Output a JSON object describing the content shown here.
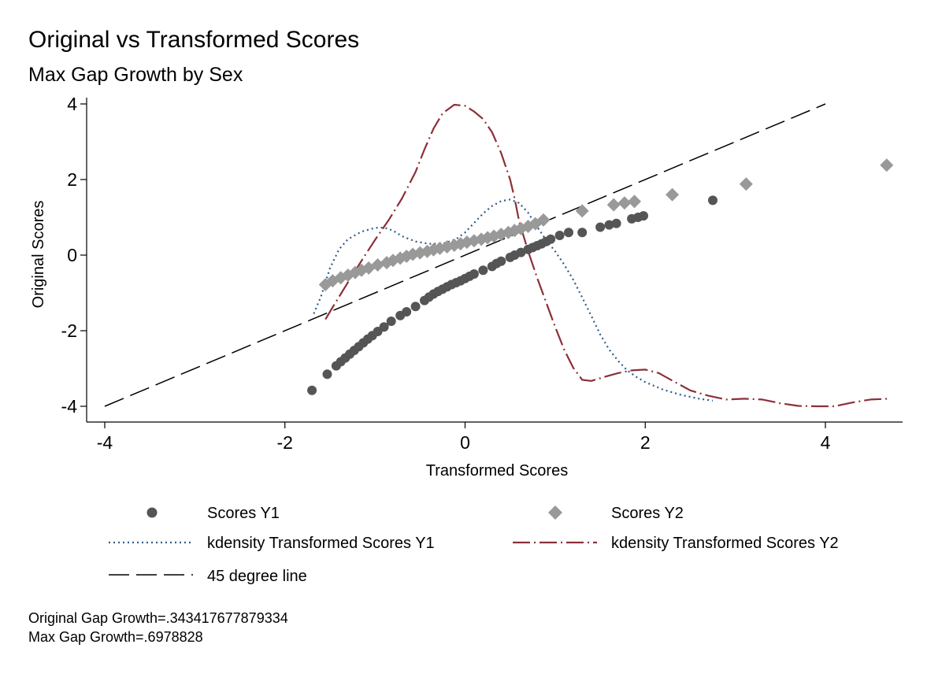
{
  "chart_data": {
    "type": "scatter",
    "title": "Original vs Transformed Scores",
    "subtitle": "Max Gap Growth by Sex",
    "xlabel": "Transformed Scores",
    "ylabel": "Original Scores",
    "xlim": [
      -4.0,
      4.7
    ],
    "ylim": [
      -4.2,
      4.2
    ],
    "xticks": [
      -4,
      -2,
      0,
      2,
      4
    ],
    "yticks": [
      -4,
      -2,
      0,
      2,
      4
    ],
    "xtick_labels": [
      "-4",
      "-2",
      "0",
      "2",
      "4"
    ],
    "ytick_labels": [
      "-4",
      "-2",
      "0",
      "2",
      "4"
    ],
    "grid": false,
    "legend_position": "bottom",
    "series": [
      {
        "name": "Scores Y1",
        "kind": "scatter",
        "marker": "circle",
        "color": "#555555",
        "points": [
          [
            -1.7,
            -3.58
          ],
          [
            -1.53,
            -3.15
          ],
          [
            -1.43,
            -2.93
          ],
          [
            -1.38,
            -2.82
          ],
          [
            -1.33,
            -2.72
          ],
          [
            -1.28,
            -2.62
          ],
          [
            -1.23,
            -2.52
          ],
          [
            -1.18,
            -2.42
          ],
          [
            -1.13,
            -2.32
          ],
          [
            -1.08,
            -2.22
          ],
          [
            -1.03,
            -2.13
          ],
          [
            -0.97,
            -2.02
          ],
          [
            -0.9,
            -1.9
          ],
          [
            -0.82,
            -1.75
          ],
          [
            -0.72,
            -1.6
          ],
          [
            -0.65,
            -1.5
          ],
          [
            -0.55,
            -1.36
          ],
          [
            -0.45,
            -1.2
          ],
          [
            -0.4,
            -1.11
          ],
          [
            -0.35,
            -1.03
          ],
          [
            -0.3,
            -0.96
          ],
          [
            -0.25,
            -0.9
          ],
          [
            -0.2,
            -0.84
          ],
          [
            -0.15,
            -0.78
          ],
          [
            -0.1,
            -0.73
          ],
          [
            -0.05,
            -0.68
          ],
          [
            0.0,
            -0.62
          ],
          [
            0.05,
            -0.56
          ],
          [
            0.1,
            -0.5
          ],
          [
            0.2,
            -0.4
          ],
          [
            0.3,
            -0.3
          ],
          [
            0.35,
            -0.22
          ],
          [
            0.4,
            -0.16
          ],
          [
            0.5,
            -0.06
          ],
          [
            0.55,
            0.0
          ],
          [
            0.62,
            0.07
          ],
          [
            0.7,
            0.15
          ],
          [
            0.75,
            0.2
          ],
          [
            0.8,
            0.25
          ],
          [
            0.85,
            0.3
          ],
          [
            0.9,
            0.36
          ],
          [
            0.95,
            0.42
          ],
          [
            1.05,
            0.52
          ],
          [
            1.15,
            0.6
          ],
          [
            1.3,
            0.6
          ],
          [
            1.5,
            0.74
          ],
          [
            1.6,
            0.8
          ],
          [
            1.68,
            0.84
          ],
          [
            1.85,
            0.96
          ],
          [
            1.92,
            1.0
          ],
          [
            1.98,
            1.04
          ],
          [
            2.75,
            1.45
          ]
        ]
      },
      {
        "name": "Scores Y2",
        "kind": "scatter",
        "marker": "diamond",
        "color": "#999999",
        "points": [
          [
            -1.55,
            -0.78
          ],
          [
            -1.47,
            -0.68
          ],
          [
            -1.38,
            -0.6
          ],
          [
            -1.3,
            -0.53
          ],
          [
            -1.22,
            -0.46
          ],
          [
            -1.15,
            -0.4
          ],
          [
            -1.07,
            -0.34
          ],
          [
            -0.97,
            -0.26
          ],
          [
            -0.87,
            -0.2
          ],
          [
            -0.8,
            -0.14
          ],
          [
            -0.72,
            -0.08
          ],
          [
            -0.65,
            -0.03
          ],
          [
            -0.58,
            0.02
          ],
          [
            -0.5,
            0.06
          ],
          [
            -0.42,
            0.1
          ],
          [
            -0.35,
            0.14
          ],
          [
            -0.28,
            0.18
          ],
          [
            -0.2,
            0.22
          ],
          [
            -0.12,
            0.26
          ],
          [
            -0.05,
            0.3
          ],
          [
            0.02,
            0.34
          ],
          [
            0.1,
            0.38
          ],
          [
            0.18,
            0.42
          ],
          [
            0.25,
            0.46
          ],
          [
            0.32,
            0.5
          ],
          [
            0.4,
            0.55
          ],
          [
            0.48,
            0.6
          ],
          [
            0.55,
            0.65
          ],
          [
            0.62,
            0.7
          ],
          [
            0.7,
            0.76
          ],
          [
            0.78,
            0.83
          ],
          [
            0.87,
            0.93
          ],
          [
            1.3,
            1.17
          ],
          [
            1.65,
            1.33
          ],
          [
            1.77,
            1.38
          ],
          [
            1.88,
            1.42
          ],
          [
            2.3,
            1.6
          ],
          [
            3.12,
            1.88
          ],
          [
            4.68,
            2.38
          ]
        ]
      },
      {
        "name": "kdensity Transformed Scores Y1",
        "kind": "line",
        "dash": "dot",
        "color": "#2e5c8a",
        "points": [
          [
            -1.68,
            -1.55
          ],
          [
            -1.6,
            -1.1
          ],
          [
            -1.5,
            -0.35
          ],
          [
            -1.4,
            0.15
          ],
          [
            -1.3,
            0.42
          ],
          [
            -1.15,
            0.62
          ],
          [
            -1.0,
            0.72
          ],
          [
            -0.9,
            0.73
          ],
          [
            -0.8,
            0.65
          ],
          [
            -0.7,
            0.5
          ],
          [
            -0.55,
            0.36
          ],
          [
            -0.4,
            0.3
          ],
          [
            -0.25,
            0.3
          ],
          [
            -0.1,
            0.42
          ],
          [
            0.0,
            0.6
          ],
          [
            0.1,
            0.85
          ],
          [
            0.2,
            1.1
          ],
          [
            0.3,
            1.3
          ],
          [
            0.4,
            1.43
          ],
          [
            0.5,
            1.47
          ],
          [
            0.6,
            1.38
          ],
          [
            0.7,
            1.12
          ],
          [
            0.8,
            0.75
          ],
          [
            0.9,
            0.4
          ],
          [
            1.0,
            0.1
          ],
          [
            1.1,
            -0.25
          ],
          [
            1.2,
            -0.65
          ],
          [
            1.3,
            -1.12
          ],
          [
            1.4,
            -1.6
          ],
          [
            1.5,
            -2.1
          ],
          [
            1.6,
            -2.5
          ],
          [
            1.7,
            -2.8
          ],
          [
            1.8,
            -3.05
          ],
          [
            1.9,
            -3.22
          ],
          [
            2.0,
            -3.36
          ],
          [
            2.2,
            -3.56
          ],
          [
            2.4,
            -3.7
          ],
          [
            2.6,
            -3.8
          ],
          [
            2.75,
            -3.85
          ]
        ]
      },
      {
        "name": "kdensity Transformed Scores Y2",
        "kind": "line",
        "dash": "dash-dot",
        "color": "#8b3038",
        "points": [
          [
            -1.55,
            -1.7
          ],
          [
            -1.45,
            -1.3
          ],
          [
            -1.3,
            -0.72
          ],
          [
            -1.15,
            -0.15
          ],
          [
            -1.0,
            0.4
          ],
          [
            -0.85,
            0.92
          ],
          [
            -0.7,
            1.5
          ],
          [
            -0.55,
            2.2
          ],
          [
            -0.45,
            2.8
          ],
          [
            -0.35,
            3.35
          ],
          [
            -0.25,
            3.75
          ],
          [
            -0.12,
            3.98
          ],
          [
            0.0,
            3.95
          ],
          [
            0.1,
            3.8
          ],
          [
            0.2,
            3.6
          ],
          [
            0.3,
            3.25
          ],
          [
            0.4,
            2.7
          ],
          [
            0.5,
            2.0
          ],
          [
            0.55,
            1.5
          ],
          [
            0.6,
            0.9
          ],
          [
            0.7,
            0.1
          ],
          [
            0.8,
            -0.6
          ],
          [
            0.9,
            -1.25
          ],
          [
            1.0,
            -1.9
          ],
          [
            1.1,
            -2.5
          ],
          [
            1.2,
            -2.98
          ],
          [
            1.3,
            -3.3
          ],
          [
            1.4,
            -3.33
          ],
          [
            1.55,
            -3.22
          ],
          [
            1.7,
            -3.12
          ],
          [
            1.85,
            -3.05
          ],
          [
            2.0,
            -3.03
          ],
          [
            2.15,
            -3.12
          ],
          [
            2.3,
            -3.32
          ],
          [
            2.5,
            -3.58
          ],
          [
            2.7,
            -3.72
          ],
          [
            2.9,
            -3.82
          ],
          [
            3.1,
            -3.8
          ],
          [
            3.3,
            -3.82
          ],
          [
            3.5,
            -3.92
          ],
          [
            3.7,
            -3.99
          ],
          [
            3.9,
            -4.0
          ],
          [
            4.1,
            -4.0
          ],
          [
            4.3,
            -3.9
          ],
          [
            4.5,
            -3.82
          ],
          [
            4.7,
            -3.8
          ]
        ]
      },
      {
        "name": "45 degree line",
        "kind": "line",
        "dash": "long-dash",
        "color": "#000000",
        "points": [
          [
            -4,
            -4
          ],
          [
            4,
            4
          ]
        ]
      }
    ]
  },
  "notes": [
    "Original Gap Growth=.343417677879334",
    "Max Gap Growth=.6978828"
  ]
}
